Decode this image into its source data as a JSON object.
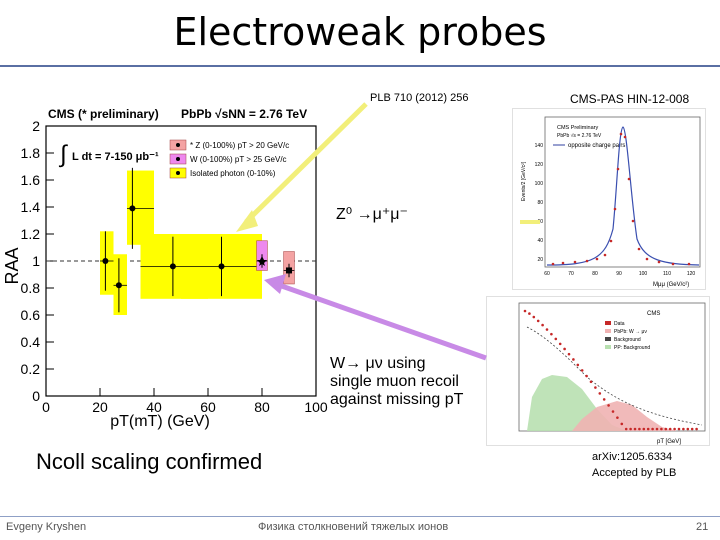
{
  "slide": {
    "title": "Electroweak probes",
    "ref_plb": "PLB 710 (2012) 256",
    "ref_cms": "CMS-PAS HIN-12-008",
    "z_label": "Z⁰ →μ⁺μ⁻",
    "w_label_1": "W→ μν using",
    "w_label_2": "single muon recoil",
    "w_label_3": "against missing pT",
    "ncoll": "Ncoll scaling confirmed",
    "arxiv_1": "arXiv:1205.6334",
    "arxiv_2": "Accepted by PLB",
    "footer_author": "Evgeny Kryshen",
    "footer_course": "Физика столкновений тяжелых ионов",
    "page_number": "21"
  },
  "raa_plot": {
    "header_left": "CMS (* preliminary)",
    "header_right": "PbPb √sNN = 2.76 TeV",
    "lumi": "L dt = 7-150 μb⁻¹",
    "legend": [
      {
        "label": "* Z (0-100%) pT > 20 GeV/c",
        "color": "#f4a3a3"
      },
      {
        "label": "W (0-100%) pT > 25 GeV/c",
        "color": "#ee88ee"
      },
      {
        "label": "Isolated photon (0-10%)",
        "color": "#ffff00"
      }
    ],
    "colors": {
      "photon_band": "#ffff00",
      "z_band": "#f4a3a3",
      "w_band": "#ee88ee",
      "reference": "#333333"
    },
    "arrow_colors": {
      "z_arrow": "#f2ef7a",
      "w_arrow": "#c88ae6"
    }
  },
  "chart_data": {
    "type": "scatter",
    "title": "",
    "xlabel": "pT(mT) (GeV)",
    "ylabel": "RAA",
    "xlim": [
      0,
      100
    ],
    "ylim": [
      0,
      2
    ],
    "xticks": [
      "0",
      "20",
      "40",
      "60",
      "80",
      "100"
    ],
    "yticks": [
      "0",
      "0.2",
      "0.4",
      "0.6",
      "0.8",
      "1",
      "1.2",
      "1.4",
      "1.6",
      "1.8",
      "2"
    ],
    "reference_line": 1.0,
    "series": [
      {
        "name": "Isolated photon (0-10%)",
        "x": [
          22,
          27,
          32,
          47,
          65
        ],
        "y": [
          1.0,
          0.82,
          1.39,
          0.96,
          0.96
        ],
        "yerr": [
          0.22,
          0.2,
          0.3,
          0.22,
          0.22
        ],
        "syst_lo": [
          0.75,
          0.6,
          1.12,
          0.72,
          0.72
        ],
        "syst_hi": [
          1.22,
          1.05,
          1.67,
          1.2,
          1.2
        ],
        "xlo": [
          20,
          25,
          30,
          35,
          50
        ],
        "xhi": [
          25,
          30,
          40,
          60,
          80
        ]
      },
      {
        "name": "W (0-100%)",
        "x": [
          80
        ],
        "y": [
          1.0
        ],
        "yerr": [
          0.05
        ],
        "syst_lo": [
          0.93
        ],
        "syst_hi": [
          1.15
        ],
        "xlo": [
          78
        ],
        "xhi": [
          82
        ]
      },
      {
        "name": "Z (0-100%)",
        "x": [
          90
        ],
        "y": [
          0.93
        ],
        "yerr": [
          0.05
        ],
        "syst_lo": [
          0.83
        ],
        "syst_hi": [
          1.07
        ],
        "xlo": [
          88
        ],
        "xhi": [
          92
        ]
      }
    ]
  },
  "inset_z": {
    "header": "CMS Preliminary",
    "legend_1": "PbPb √s = 2.76 TeV",
    "legend_2": "opposite charge pairs",
    "ylabel": "Events/2 [GeV/c²]",
    "xlabel": "Mμμ (GeV/c²)",
    "yticks": [
      "20",
      "40",
      "60",
      "80",
      "100",
      "120",
      "140"
    ],
    "xticks": [
      "60",
      "70",
      "80",
      "90",
      "100",
      "110",
      "120"
    ]
  },
  "inset_w": {
    "header": "CMS",
    "legend": [
      "Data",
      "PbPb: W → μν",
      "Background",
      "PP: Background"
    ],
    "xlabel": "pT [GeV]"
  }
}
